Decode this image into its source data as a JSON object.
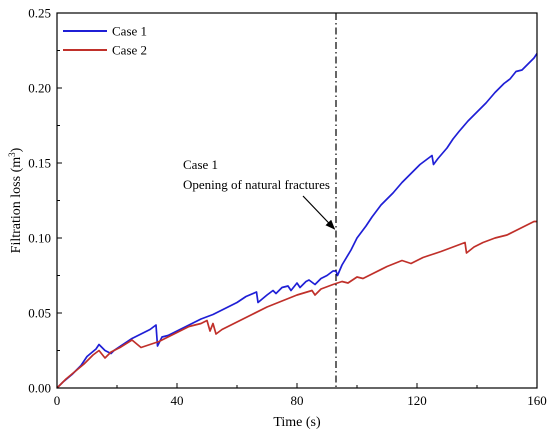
{
  "chart_data": {
    "type": "line",
    "xlabel": "Time (s)",
    "ylabel": "Filtration loss (m",
    "ylabel_sup": "3",
    "ylabel_end": ")",
    "xlim": [
      0,
      160
    ],
    "ylim": [
      0,
      0.25
    ],
    "x_ticks": [
      {
        "value": 0,
        "label": "0"
      },
      {
        "value": 40,
        "label": "40"
      },
      {
        "value": 80,
        "label": "80"
      },
      {
        "value": 120,
        "label": "120"
      },
      {
        "value": 160,
        "label": "160"
      }
    ],
    "y_ticks": [
      {
        "value": 0,
        "label": "0.00"
      },
      {
        "value": 0.05,
        "label": "0.05"
      },
      {
        "value": 0.1,
        "label": "0.10"
      },
      {
        "value": 0.15,
        "label": "0.15"
      },
      {
        "value": 0.2,
        "label": "0.20"
      },
      {
        "value": 0.25,
        "label": "0.25"
      }
    ],
    "grid": false,
    "legend_position": "top-left",
    "series": [
      {
        "name": "Case 1",
        "color": "#1f1fd6",
        "x": [
          0,
          2,
          5,
          8,
          10,
          13,
          14,
          16,
          18,
          19,
          22,
          25,
          28,
          31,
          33,
          33.5,
          35,
          37,
          40,
          44,
          48,
          52,
          56,
          60,
          63,
          66.5,
          67,
          70,
          72,
          73,
          75,
          77,
          78,
          80,
          81,
          83,
          84,
          86,
          88,
          90,
          92,
          93,
          93.5,
          95,
          98,
          100,
          103,
          105,
          108,
          112,
          115,
          118,
          121,
          125,
          125.5,
          127,
          130,
          132,
          134,
          137,
          140,
          143,
          146,
          149,
          151,
          153,
          155,
          157,
          159,
          160
        ],
        "y": [
          0,
          0.004,
          0.009,
          0.015,
          0.021,
          0.026,
          0.029,
          0.025,
          0.023,
          0.025,
          0.029,
          0.033,
          0.036,
          0.039,
          0.042,
          0.028,
          0.034,
          0.035,
          0.038,
          0.042,
          0.046,
          0.049,
          0.053,
          0.057,
          0.061,
          0.064,
          0.057,
          0.062,
          0.065,
          0.063,
          0.067,
          0.068,
          0.065,
          0.07,
          0.067,
          0.071,
          0.072,
          0.069,
          0.073,
          0.075,
          0.078,
          0.078,
          0.075,
          0.082,
          0.092,
          0.1,
          0.108,
          0.114,
          0.122,
          0.13,
          0.137,
          0.143,
          0.149,
          0.155,
          0.149,
          0.153,
          0.16,
          0.166,
          0.171,
          0.178,
          0.184,
          0.19,
          0.197,
          0.203,
          0.206,
          0.211,
          0.212,
          0.216,
          0.22,
          0.223
        ]
      },
      {
        "name": "Case 2",
        "color": "#c0302a",
        "x": [
          0,
          3,
          6,
          9,
          12,
          14,
          16,
          18,
          21,
          25,
          28,
          31,
          34,
          36,
          40,
          44,
          48,
          50,
          51,
          52,
          53,
          55,
          60,
          65,
          70,
          75,
          80,
          85,
          86,
          88,
          92,
          95,
          97,
          100,
          102,
          105,
          110,
          115,
          118,
          122,
          125,
          128,
          132,
          136,
          136.5,
          139,
          142,
          146,
          150,
          153,
          156,
          159,
          160
        ],
        "y": [
          0,
          0.006,
          0.011,
          0.016,
          0.022,
          0.025,
          0.02,
          0.024,
          0.027,
          0.032,
          0.027,
          0.029,
          0.031,
          0.033,
          0.037,
          0.041,
          0.043,
          0.045,
          0.038,
          0.043,
          0.036,
          0.039,
          0.044,
          0.049,
          0.054,
          0.058,
          0.062,
          0.065,
          0.062,
          0.066,
          0.069,
          0.071,
          0.07,
          0.074,
          0.073,
          0.076,
          0.081,
          0.085,
          0.083,
          0.087,
          0.089,
          0.091,
          0.094,
          0.097,
          0.09,
          0.094,
          0.097,
          0.1,
          0.102,
          0.105,
          0.108,
          0.111,
          0.111
        ]
      }
    ],
    "vline": {
      "x": 93,
      "style": "dash-dot"
    },
    "annotation": {
      "lines": [
        "Case 1",
        "Opening of natural fractures"
      ],
      "arrow_from": [
        82,
        0.128
      ],
      "arrow_to": [
        92.5,
        0.106
      ]
    }
  }
}
